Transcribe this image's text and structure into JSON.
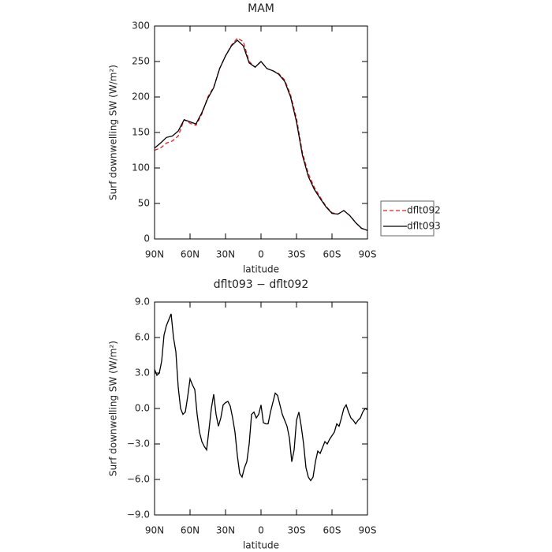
{
  "chart_data": [
    {
      "type": "line",
      "title": "MAM",
      "xlabel": "latitude",
      "ylabel": "Surf downwelling SW (W/m²)",
      "x": [
        90,
        85,
        80,
        75,
        70,
        65,
        60,
        55,
        50,
        45,
        40,
        35,
        30,
        25,
        20,
        15,
        10,
        5,
        0,
        -5,
        -10,
        -15,
        -20,
        -25,
        -30,
        -35,
        -40,
        -45,
        -50,
        -55,
        -60,
        -65,
        -70,
        -75,
        -80,
        -85,
        -90
      ],
      "series": [
        {
          "name": "dflt092",
          "color": "#e02020",
          "dash": true,
          "values": [
            125,
            128,
            135,
            138,
            145,
            168,
            163,
            160,
            176,
            200,
            214,
            240,
            258,
            273,
            283,
            278,
            250,
            242,
            250,
            240,
            237,
            233,
            224,
            203,
            170,
            122,
            92,
            73,
            59,
            46,
            37,
            35,
            40,
            33,
            23,
            15,
            12
          ]
        },
        {
          "name": "dflt093",
          "color": "#000000",
          "dash": false,
          "values": [
            128,
            135,
            143,
            145,
            152,
            168,
            165,
            162,
            178,
            198,
            213,
            240,
            258,
            272,
            280,
            272,
            248,
            242,
            250,
            240,
            237,
            232,
            222,
            200,
            165,
            118,
            88,
            70,
            57,
            45,
            36,
            35,
            40,
            33,
            23,
            15,
            12
          ]
        }
      ],
      "xlim": [
        90,
        -90
      ],
      "xticks": [
        {
          "value": 90,
          "label": "90N"
        },
        {
          "value": 60,
          "label": "60N"
        },
        {
          "value": 30,
          "label": "30N"
        },
        0,
        {
          "value": -30,
          "label": "30S"
        },
        {
          "value": -60,
          "label": "60S"
        },
        {
          "value": -90,
          "label": "90S"
        }
      ],
      "ylim": [
        0,
        300
      ],
      "yticks": [
        0,
        50,
        100,
        150,
        200,
        250,
        300
      ],
      "legend": "right"
    },
    {
      "type": "line",
      "title": "dflt093 − dflt092",
      "xlabel": "latitude",
      "ylabel": "Surf downwelling SW (W/m²)",
      "x": [
        90,
        88,
        86,
        84,
        82,
        80,
        78,
        76,
        74,
        72,
        70,
        68,
        66,
        64,
        62,
        60,
        58,
        56,
        54,
        52,
        50,
        48,
        46,
        44,
        42,
        40,
        38,
        36,
        34,
        32,
        30,
        28,
        26,
        24,
        22,
        20,
        18,
        16,
        14,
        12,
        10,
        8,
        6,
        4,
        2,
        0,
        -2,
        -4,
        -6,
        -8,
        -10,
        -12,
        -14,
        -16,
        -18,
        -20,
        -22,
        -24,
        -26,
        -28,
        -30,
        -32,
        -34,
        -36,
        -38,
        -40,
        -42,
        -44,
        -46,
        -48,
        -50,
        -52,
        -54,
        -56,
        -58,
        -60,
        -62,
        -64,
        -66,
        -68,
        -70,
        -72,
        -74,
        -76,
        -78,
        -80,
        -82,
        -84,
        -86,
        -88,
        -90
      ],
      "values": [
        3.3,
        2.8,
        3.0,
        4.0,
        6.2,
        7.0,
        7.5,
        8.0,
        6.0,
        4.8,
        1.8,
        0,
        -0.5,
        -0.3,
        1.0,
        2.5,
        2.0,
        1.6,
        -0.5,
        -2.0,
        -2.8,
        -3.2,
        -3.5,
        -1.8,
        0,
        1.2,
        -0.5,
        -1.5,
        -0.8,
        0.3,
        0.5,
        0.6,
        0.2,
        -0.8,
        -2.0,
        -4.0,
        -5.5,
        -5.8,
        -5.0,
        -4.5,
        -3.0,
        -0.5,
        -0.3,
        -0.8,
        -0.5,
        0.3,
        -1.2,
        -1.3,
        -1.3,
        -0.3,
        0.5,
        1.3,
        1.1,
        0.3,
        -0.5,
        -1.0,
        -1.5,
        -2.5,
        -4.5,
        -3.5,
        -1.0,
        -0.3,
        -1.5,
        -3.0,
        -5.0,
        -5.8,
        -6.1,
        -5.8,
        -4.5,
        -3.6,
        -3.8,
        -3.3,
        -2.8,
        -3.0,
        -2.6,
        -2.3,
        -2.0,
        -1.3,
        -1.5,
        -0.8,
        0,
        0.3,
        -0.3,
        -0.8,
        -1.0,
        -1.3,
        -1.0,
        -0.8,
        -0.3,
        0,
        -0.1
      ],
      "color": "#000000",
      "xlim": [
        90,
        -90
      ],
      "xticks": [
        {
          "value": 90,
          "label": "90N"
        },
        {
          "value": 60,
          "label": "60N"
        },
        {
          "value": 30,
          "label": "30N"
        },
        0,
        {
          "value": -30,
          "label": "30S"
        },
        {
          "value": -60,
          "label": "60S"
        },
        {
          "value": -90,
          "label": "90S"
        }
      ],
      "ylim": [
        -9,
        9
      ],
      "yticks": [
        {
          "value": -9,
          "label": "−9.0"
        },
        {
          "value": -6,
          "label": "−6.0"
        },
        {
          "value": -3,
          "label": "−3.0"
        },
        {
          "value": 0,
          "label": "0.0"
        },
        {
          "value": 3,
          "label": "3.0"
        },
        {
          "value": 6,
          "label": "6.0"
        },
        {
          "value": 9,
          "label": "9.0"
        }
      ]
    }
  ]
}
